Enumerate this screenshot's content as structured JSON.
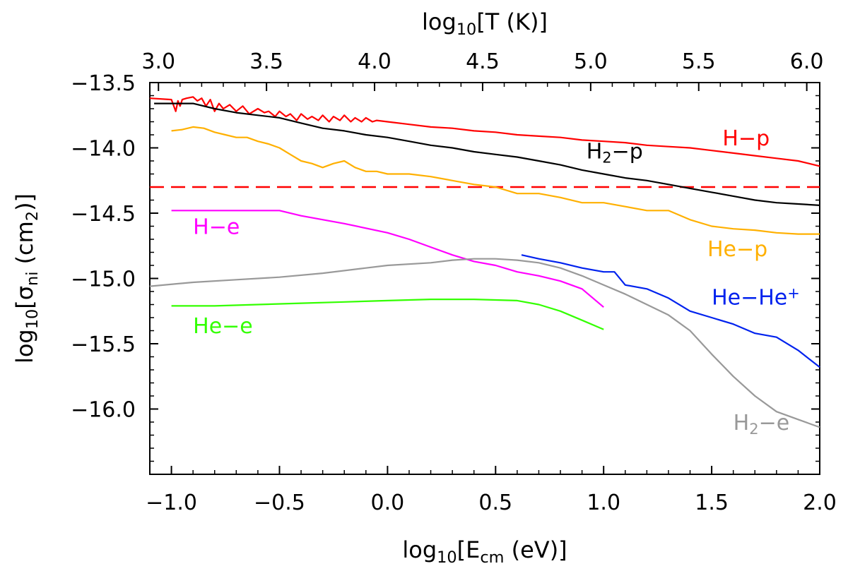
{
  "chart_data": {
    "type": "line",
    "x_label_parts": [
      "log",
      "10",
      "[E",
      "cm",
      " (eV)]"
    ],
    "y_label_parts": [
      "log",
      "10",
      "[σ",
      "ni",
      " (cm",
      "2",
      ")]"
    ],
    "top_label_parts": [
      "log",
      "10",
      "[T (K)]"
    ],
    "xlim": [
      -1.1,
      2.0
    ],
    "ylim": [
      -16.5,
      -13.5
    ],
    "x_ticks": [
      -1.0,
      -0.5,
      0.0,
      0.5,
      1.0,
      1.5,
      2.0
    ],
    "x_tick_labels": [
      "−1.0",
      "−0.5",
      "0.0",
      "0.5",
      "1.0",
      "1.5",
      "2.0"
    ],
    "y_ticks": [
      -13.5,
      -14.0,
      -14.5,
      -15.0,
      -15.5,
      -16.0
    ],
    "y_tick_labels": [
      "−13.5",
      "−14.0",
      "−14.5",
      "−15.0",
      "−15.5",
      "−16.0"
    ],
    "top_ticks": [
      3.0,
      3.5,
      4.0,
      4.5,
      5.0,
      5.5,
      6.0
    ],
    "top_tick_labels": [
      "3.0",
      "3.5",
      "4.0",
      "4.5",
      "5.0",
      "5.5",
      "6.0"
    ],
    "top_axis_offset": 4.06,
    "reference_line": {
      "y": -14.3,
      "color": "#ff0000",
      "style": "dashed"
    },
    "series": [
      {
        "name": "H-p",
        "label_parts": [
          "H−p"
        ],
        "color": "#ff0000",
        "label_at": [
          1.55,
          -13.98
        ],
        "x": [
          -1.1,
          -1.0,
          -0.98,
          -0.97,
          -0.96,
          -0.95,
          -0.93,
          -0.9,
          -0.88,
          -0.86,
          -0.84,
          -0.82,
          -0.8,
          -0.78,
          -0.76,
          -0.73,
          -0.7,
          -0.67,
          -0.64,
          -0.6,
          -0.57,
          -0.55,
          -0.52,
          -0.5,
          -0.47,
          -0.45,
          -0.42,
          -0.4,
          -0.37,
          -0.35,
          -0.32,
          -0.3,
          -0.27,
          -0.25,
          -0.22,
          -0.2,
          -0.17,
          -0.15,
          -0.12,
          -0.1,
          -0.07,
          -0.05,
          0.0,
          0.1,
          0.2,
          0.3,
          0.4,
          0.5,
          0.6,
          0.7,
          0.8,
          0.9,
          1.0,
          1.1,
          1.2,
          1.3,
          1.4,
          1.5,
          1.6,
          1.7,
          1.8,
          1.9,
          2.0
        ],
        "y": [
          -13.62,
          -13.63,
          -13.72,
          -13.64,
          -13.68,
          -13.63,
          -13.62,
          -13.61,
          -13.64,
          -13.62,
          -13.68,
          -13.63,
          -13.72,
          -13.66,
          -13.7,
          -13.67,
          -13.72,
          -13.68,
          -13.74,
          -13.7,
          -13.73,
          -13.72,
          -13.76,
          -13.72,
          -13.76,
          -13.74,
          -13.79,
          -13.74,
          -13.78,
          -13.76,
          -13.79,
          -13.75,
          -13.8,
          -13.76,
          -13.79,
          -13.75,
          -13.8,
          -13.77,
          -13.8,
          -13.77,
          -13.8,
          -13.79,
          -13.8,
          -13.82,
          -13.84,
          -13.85,
          -13.87,
          -13.88,
          -13.9,
          -13.91,
          -13.92,
          -13.94,
          -13.95,
          -13.96,
          -13.98,
          -13.99,
          -14.0,
          -14.02,
          -14.04,
          -14.06,
          -14.08,
          -14.1,
          -14.14
        ]
      },
      {
        "name": "H2-p",
        "label_parts": [
          "H",
          "2",
          "−p"
        ],
        "color": "#000000",
        "label_at": [
          0.92,
          -14.08
        ],
        "x": [
          -1.08,
          -0.9,
          -0.8,
          -0.7,
          -0.6,
          -0.5,
          -0.4,
          -0.3,
          -0.2,
          -0.1,
          0.0,
          0.1,
          0.2,
          0.3,
          0.4,
          0.5,
          0.6,
          0.7,
          0.8,
          0.9,
          1.0,
          1.1,
          1.2,
          1.3,
          1.4,
          1.5,
          1.6,
          1.7,
          1.8,
          1.9,
          2.0
        ],
        "y": [
          -13.66,
          -13.66,
          -13.7,
          -13.73,
          -13.75,
          -13.77,
          -13.81,
          -13.85,
          -13.87,
          -13.9,
          -13.92,
          -13.95,
          -13.98,
          -14.0,
          -14.03,
          -14.05,
          -14.07,
          -14.1,
          -14.13,
          -14.17,
          -14.2,
          -14.23,
          -14.25,
          -14.28,
          -14.31,
          -14.34,
          -14.37,
          -14.4,
          -14.42,
          -14.43,
          -14.44
        ]
      },
      {
        "name": "He-p",
        "label_parts": [
          "He−p"
        ],
        "color": "#ffb000",
        "label_at": [
          1.48,
          -14.83
        ],
        "x": [
          -1.0,
          -0.95,
          -0.9,
          -0.85,
          -0.8,
          -0.75,
          -0.7,
          -0.65,
          -0.6,
          -0.55,
          -0.5,
          -0.45,
          -0.4,
          -0.35,
          -0.3,
          -0.25,
          -0.2,
          -0.15,
          -0.1,
          -0.05,
          0.0,
          0.05,
          0.1,
          0.2,
          0.3,
          0.4,
          0.5,
          0.6,
          0.7,
          0.8,
          0.9,
          1.0,
          1.1,
          1.2,
          1.3,
          1.4,
          1.5,
          1.6,
          1.7,
          1.8,
          1.9,
          2.0
        ],
        "y": [
          -13.87,
          -13.86,
          -13.84,
          -13.85,
          -13.88,
          -13.9,
          -13.92,
          -13.92,
          -13.95,
          -13.97,
          -14.0,
          -14.05,
          -14.1,
          -14.12,
          -14.15,
          -14.12,
          -14.1,
          -14.15,
          -14.18,
          -14.18,
          -14.2,
          -14.2,
          -14.2,
          -14.22,
          -14.25,
          -14.28,
          -14.3,
          -14.35,
          -14.35,
          -14.38,
          -14.42,
          -14.42,
          -14.45,
          -14.48,
          -14.48,
          -14.55,
          -14.6,
          -14.62,
          -14.63,
          -14.65,
          -14.66,
          -14.66
        ]
      },
      {
        "name": "H-e",
        "label_parts": [
          "H−e"
        ],
        "color": "#ff00ff",
        "label_at": [
          -0.9,
          -14.66
        ],
        "x": [
          -1.0,
          -0.8,
          -0.6,
          -0.5,
          -0.4,
          -0.2,
          0.0,
          0.1,
          0.2,
          0.3,
          0.4,
          0.5,
          0.6,
          0.7,
          0.8,
          0.9,
          1.0
        ],
        "y": [
          -14.48,
          -14.48,
          -14.48,
          -14.48,
          -14.52,
          -14.58,
          -14.65,
          -14.7,
          -14.76,
          -14.82,
          -14.87,
          -14.9,
          -14.95,
          -14.98,
          -15.02,
          -15.08,
          -15.22
        ]
      },
      {
        "name": "He-He+",
        "label_parts": [
          "He−He",
          "+"
        ],
        "color": "#0022ee",
        "label_at": [
          1.5,
          -15.2
        ],
        "x": [
          0.62,
          0.7,
          0.8,
          0.9,
          1.0,
          1.05,
          1.1,
          1.2,
          1.3,
          1.4,
          1.5,
          1.6,
          1.7,
          1.8,
          1.9,
          2.0
        ],
        "y": [
          -14.82,
          -14.85,
          -14.88,
          -14.92,
          -14.95,
          -14.95,
          -15.05,
          -15.08,
          -15.15,
          -15.25,
          -15.3,
          -15.35,
          -15.42,
          -15.45,
          -15.55,
          -15.68
        ]
      },
      {
        "name": "H2-e",
        "label_parts": [
          "H",
          "2",
          "−e"
        ],
        "color": "#999999",
        "label_at": [
          1.6,
          -16.16
        ],
        "x": [
          -1.1,
          -0.9,
          -0.7,
          -0.5,
          -0.3,
          -0.1,
          0.0,
          0.2,
          0.3,
          0.4,
          0.5,
          0.6,
          0.7,
          0.8,
          0.9,
          1.0,
          1.1,
          1.2,
          1.3,
          1.4,
          1.5,
          1.6,
          1.7,
          1.8,
          1.9,
          2.0
        ],
        "y": [
          -15.06,
          -15.03,
          -15.01,
          -14.99,
          -14.96,
          -14.92,
          -14.9,
          -14.88,
          -14.86,
          -14.85,
          -14.85,
          -14.86,
          -14.88,
          -14.92,
          -14.98,
          -15.05,
          -15.12,
          -15.2,
          -15.28,
          -15.4,
          -15.58,
          -15.75,
          -15.9,
          -16.02,
          -16.08,
          -16.14
        ]
      },
      {
        "name": "He-e",
        "label_parts": [
          "He−e"
        ],
        "color": "#33ff00",
        "label_at": [
          -0.9,
          -15.42
        ],
        "x": [
          -1.0,
          -0.8,
          -0.6,
          -0.4,
          -0.2,
          0.0,
          0.2,
          0.4,
          0.6,
          0.7,
          0.8,
          0.9,
          1.0
        ],
        "y": [
          -15.21,
          -15.21,
          -15.2,
          -15.19,
          -15.18,
          -15.17,
          -15.16,
          -15.16,
          -15.17,
          -15.2,
          -15.25,
          -15.32,
          -15.39
        ]
      }
    ]
  }
}
